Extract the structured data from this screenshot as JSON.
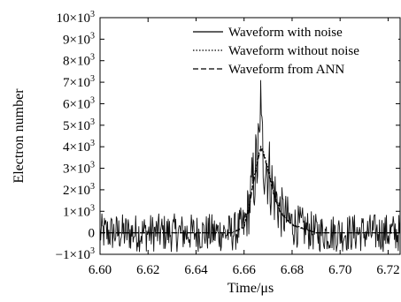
{
  "chart_data": {
    "type": "line",
    "xlabel": "Time/μs",
    "ylabel": "Electron number",
    "xlim": [
      6.6,
      6.725
    ],
    "ylim": [
      -1000,
      10000
    ],
    "x_ticks": [
      6.6,
      6.62,
      6.64,
      6.66,
      6.68,
      6.7,
      6.72
    ],
    "x_tick_labels": [
      "6.60",
      "6.62",
      "6.64",
      "6.66",
      "6.68",
      "6.70",
      "6.72"
    ],
    "y_ticks": [
      -1000,
      0,
      1000,
      2000,
      3000,
      4000,
      5000,
      6000,
      7000,
      8000,
      9000,
      10000
    ],
    "y_tick_labels": [
      {
        "mant": "−1×10",
        "exp": "3"
      },
      {
        "mant": "0",
        "exp": ""
      },
      {
        "mant": "1×10",
        "exp": "3"
      },
      {
        "mant": "2×10",
        "exp": "3"
      },
      {
        "mant": "3×10",
        "exp": "3"
      },
      {
        "mant": "4×10",
        "exp": "3"
      },
      {
        "mant": "5×10",
        "exp": "3"
      },
      {
        "mant": "6×10",
        "exp": "3"
      },
      {
        "mant": "7×10",
        "exp": "3"
      },
      {
        "mant": "8×10",
        "exp": "3"
      },
      {
        "mant": "9×10",
        "exp": "3"
      },
      {
        "mant": "10×10",
        "exp": "3"
      }
    ],
    "legend_position": "top-right",
    "grid": false,
    "series": [
      {
        "name": "Waveform with noise",
        "line_style": "solid",
        "x_range": [
          6.6,
          6.725
        ],
        "baseline_noise_amplitude": 1000,
        "peak_x": 6.667,
        "peak_y": 7100
      },
      {
        "name": "Waveform without noise",
        "line_style": "dotted",
        "x": [
          6.6,
          6.655,
          6.66,
          6.662,
          6.664,
          6.666,
          6.667,
          6.668,
          6.67,
          6.672,
          6.675,
          6.68,
          6.69,
          6.725
        ],
        "y": [
          0,
          0,
          300,
          1200,
          2500,
          3600,
          4000,
          3800,
          3000,
          2000,
          1000,
          400,
          0,
          0
        ]
      },
      {
        "name": "Waveform from ANN",
        "line_style": "dashed",
        "x": [
          6.6,
          6.655,
          6.66,
          6.662,
          6.664,
          6.666,
          6.667,
          6.668,
          6.67,
          6.672,
          6.675,
          6.68,
          6.69,
          6.725
        ],
        "y": [
          0,
          0,
          250,
          1100,
          2400,
          3500,
          3900,
          3700,
          2900,
          1900,
          950,
          350,
          0,
          0
        ]
      }
    ]
  }
}
